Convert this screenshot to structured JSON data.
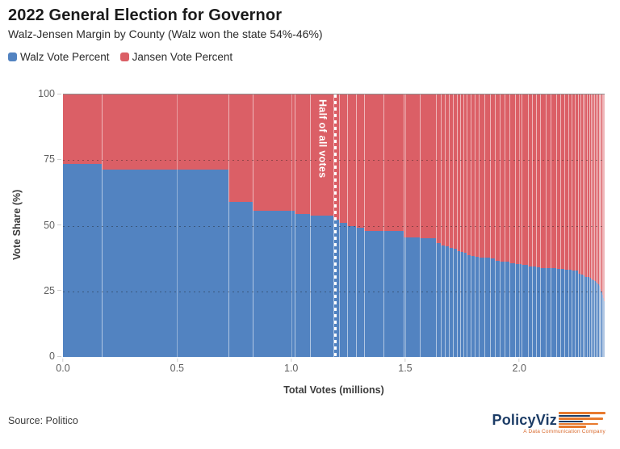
{
  "header": {
    "title": "2022 General Election for Governor",
    "subtitle": "Walz-Jensen Margin by County (Walz won the state 54%-46%)"
  },
  "legend": {
    "items": [
      {
        "label": "Walz Vote Percent",
        "color": "#5283c1"
      },
      {
        "label": "Jansen Vote Percent",
        "color": "#db5f66"
      }
    ]
  },
  "chart_data": {
    "type": "bar",
    "variant": "marimekko-stacked-100pct-variable-width",
    "title": "2022 General Election for Governor",
    "subtitle": "Walz-Jensen Margin by County (Walz won the state 54%-46%)",
    "xlabel": "Total Votes (millions)",
    "ylabel": "Vote Share (%)",
    "ylim": [
      0,
      100
    ],
    "x_tick_labels": [
      "0.0",
      "0.5",
      "1.0",
      "1.5",
      "2.0"
    ],
    "x_tick_values": [
      0,
      0.5,
      1.0,
      1.5,
      2.0
    ],
    "y_tick_labels": [
      "0",
      "25",
      "50",
      "75",
      "100"
    ],
    "y_tick_values": [
      0,
      25,
      50,
      75,
      100
    ],
    "grid": {
      "h_dotted_at": [
        25,
        50,
        75
      ],
      "v_light_at": [
        0.5,
        1.0,
        1.5,
        2.0
      ]
    },
    "annotation": {
      "label": "Half of all votes",
      "at_fraction_of_total_votes": 0.5
    },
    "series_colors": {
      "walz": "#5283c1",
      "jansen": "#db5f66"
    },
    "counties_columns": [
      "total_votes_millions",
      "walz_pct"
    ],
    "counties": [
      [
        0.17,
        73.4
      ],
      [
        0.556,
        71.4
      ],
      [
        0.104,
        59.0
      ],
      [
        0.184,
        55.8
      ],
      [
        0.07,
        54.6
      ],
      [
        0.1,
        53.8
      ],
      [
        0.025,
        52.2
      ],
      [
        0.036,
        51.2
      ],
      [
        0.039,
        49.9
      ],
      [
        0.036,
        49.3
      ],
      [
        0.086,
        48.1
      ],
      [
        0.086,
        47.9
      ],
      [
        0.072,
        45.5
      ],
      [
        0.071,
        45.2
      ],
      [
        0.02,
        43.4
      ],
      [
        0.018,
        42.6
      ],
      [
        0.018,
        42.3
      ],
      [
        0.018,
        41.4
      ],
      [
        0.018,
        41.1
      ],
      [
        0.014,
        40.2
      ],
      [
        0.015,
        39.9
      ],
      [
        0.014,
        39.7
      ],
      [
        0.018,
        38.9
      ],
      [
        0.018,
        38.6
      ],
      [
        0.017,
        38.3
      ],
      [
        0.024,
        38.0
      ],
      [
        0.024,
        37.8
      ],
      [
        0.023,
        37.6
      ],
      [
        0.02,
        36.6
      ],
      [
        0.021,
        36.4
      ],
      [
        0.02,
        36.2
      ],
      [
        0.028,
        35.6
      ],
      [
        0.027,
        35.4
      ],
      [
        0.027,
        35.2
      ],
      [
        0.018,
        34.6
      ],
      [
        0.018,
        34.4
      ],
      [
        0.017,
        34.2
      ],
      [
        0.024,
        34.0
      ],
      [
        0.024,
        33.9
      ],
      [
        0.023,
        33.8
      ],
      [
        0.018,
        33.5
      ],
      [
        0.018,
        33.4
      ],
      [
        0.017,
        33.3
      ],
      [
        0.015,
        33.1
      ],
      [
        0.014,
        33.0
      ],
      [
        0.014,
        32.9
      ],
      [
        0.01,
        31.6
      ],
      [
        0.01,
        31.4
      ],
      [
        0.009,
        31.2
      ],
      [
        0.01,
        30.6
      ],
      [
        0.01,
        30.4
      ],
      [
        0.009,
        30.2
      ],
      [
        0.007,
        29.6
      ],
      [
        0.007,
        29.3
      ],
      [
        0.007,
        29.0
      ],
      [
        0.006,
        28.4
      ],
      [
        0.006,
        27.6
      ],
      [
        0.005,
        27.0
      ],
      [
        0.005,
        25.8
      ],
      [
        0.004,
        24.8
      ],
      [
        0.004,
        23.6
      ],
      [
        0.004,
        22.4
      ],
      [
        0.004,
        21.3
      ]
    ]
  },
  "footer": {
    "source": "Source: Politico",
    "logo": {
      "name": "PolicyViz",
      "tagline": "A Data Communication Company",
      "navy": "#1c3c66",
      "orange": "#e87a2e"
    }
  }
}
